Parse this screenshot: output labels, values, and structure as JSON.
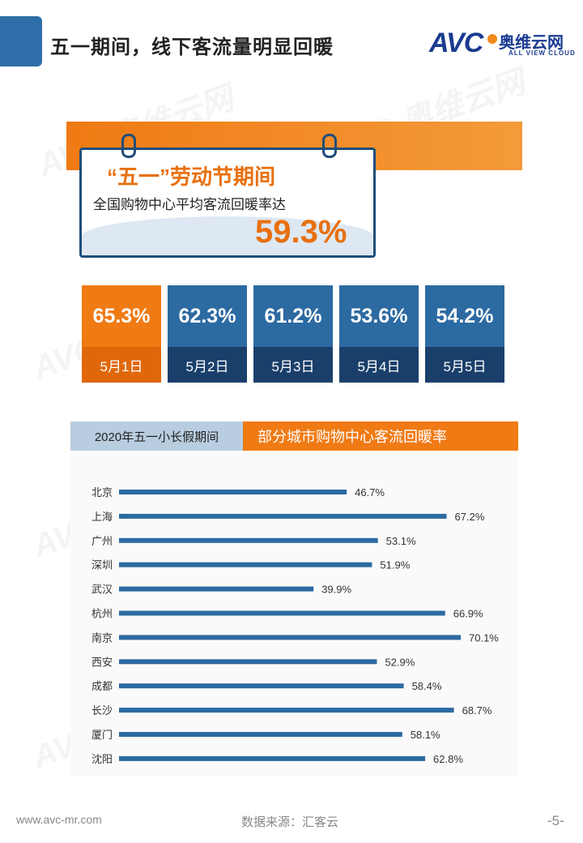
{
  "header": {
    "title": "五一期间，线下客流量明显回暖"
  },
  "logo": {
    "brand": "AVC",
    "name_cn": "奥维云网",
    "name_en": "ALL VIEW CLOUD"
  },
  "hero": {
    "title": "“五一”劳动节期间",
    "subtitle": "全国购物中心平均客流回暖率达",
    "value": "59.3%"
  },
  "days": [
    {
      "value": "65.3%",
      "label": "5月1日",
      "highlight": true
    },
    {
      "value": "62.3%",
      "label": "5月2日",
      "highlight": false
    },
    {
      "value": "61.2%",
      "label": "5月3日",
      "highlight": false
    },
    {
      "value": "53.6%",
      "label": "5月4日",
      "highlight": false
    },
    {
      "value": "54.2%",
      "label": "5月5日",
      "highlight": false
    }
  ],
  "colors": {
    "orange": "#f07a14",
    "orange_dark": "#e0680b",
    "blue": "#2c6aa2",
    "blue_dark": "#1a3f6b",
    "bar": "#2c6aa2"
  },
  "section": {
    "left_label": "2020年五一小长假期间",
    "right_label": "部分城市购物中心客流回暖率"
  },
  "chart_data": {
    "type": "bar",
    "orientation": "horizontal",
    "title": "部分城市购物中心客流回暖率",
    "unit": "%",
    "categories": [
      "北京",
      "上海",
      "广州",
      "深圳",
      "武汉",
      "杭州",
      "南京",
      "西安",
      "成都",
      "长沙",
      "厦门",
      "沈阳"
    ],
    "values": [
      46.7,
      67.2,
      53.1,
      51.9,
      39.9,
      66.9,
      70.1,
      52.9,
      58.4,
      68.7,
      58.1,
      62.8
    ],
    "value_labels": [
      "46.7%",
      "67.2%",
      "53.1%",
      "51.9%",
      "39.9%",
      "66.9%",
      "70.1%",
      "52.9%",
      "58.4%",
      "68.7%",
      "58.1%",
      "62.8%"
    ],
    "xlim": [
      0,
      70.1
    ]
  },
  "footer": {
    "website": "www.avc-mr.com",
    "source": "数据来源：汇客云",
    "page": "-5-"
  }
}
